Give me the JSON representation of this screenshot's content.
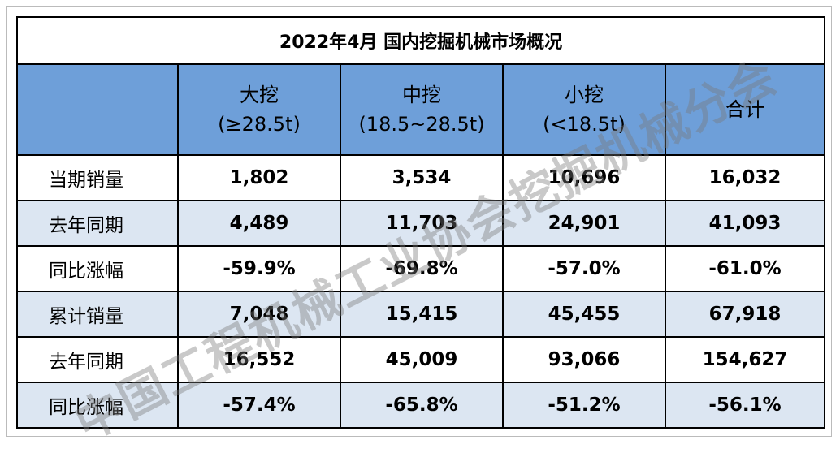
{
  "table": {
    "title": "2022年4月  国内挖掘机械市场概况",
    "header": [
      {
        "name": "大挖",
        "spec": "(≥28.5t)"
      },
      {
        "name": "中挖",
        "spec": "(18.5~28.5t)"
      },
      {
        "name": "小挖",
        "spec": "(<18.5t)"
      },
      {
        "name": "合计"
      }
    ],
    "rows": [
      [
        "当期销量",
        "1,802",
        "3,534",
        "10,696",
        "16,032"
      ],
      [
        "去年同期",
        "4,489",
        "11,703",
        "24,901",
        "41,093"
      ],
      [
        "同比涨幅",
        "-59.9%",
        "-69.8%",
        "-57.0%",
        "-61.0%"
      ],
      [
        "累计销量",
        "7,048",
        "15,415",
        "45,455",
        "67,918"
      ],
      [
        "去年同期",
        "16,552",
        "45,009",
        "93,066",
        "154,627"
      ],
      [
        "同比涨幅",
        "-57.4%",
        "-65.8%",
        "-51.2%",
        "-56.1%"
      ]
    ]
  },
  "watermark": "中国工程机械工业协会挖掘机械分会"
}
